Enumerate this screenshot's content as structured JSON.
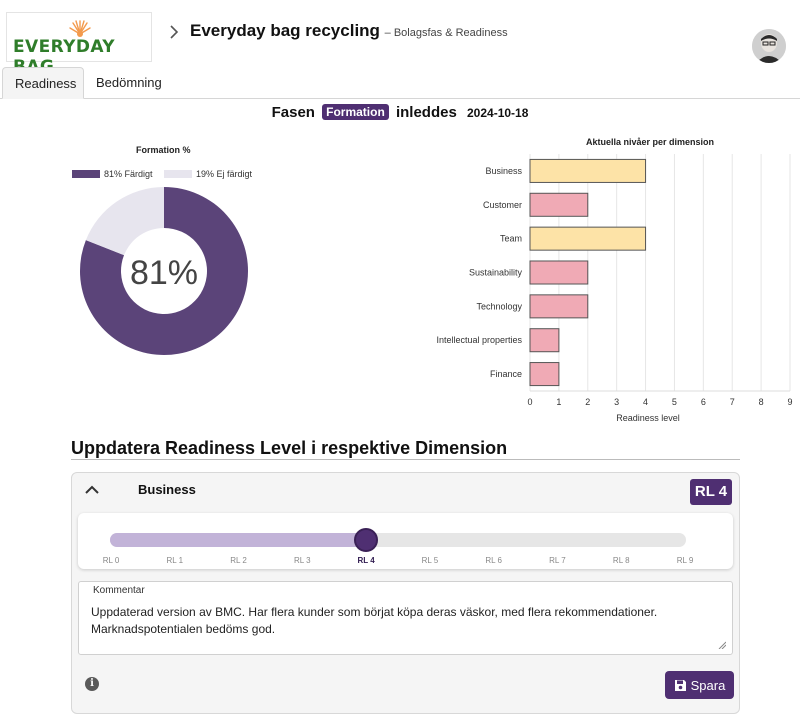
{
  "header": {
    "logo_text": "EVERYDAY BAG",
    "title": "Everyday bag recycling",
    "subtitle": "– Bolagsfas & Readiness"
  },
  "tabs": [
    {
      "label": "Readiness",
      "active": true
    },
    {
      "label": "Bedömning",
      "active": false
    }
  ],
  "phase": {
    "prefix": "Fasen",
    "badge": "Formation",
    "suffix": "inleddes",
    "date": "2024-10-18"
  },
  "colors": {
    "primary": "#4f2f72",
    "donut_done": "#5b4479",
    "donut_rest": "#e7e5ee",
    "bar_yellow": "#fde3a7",
    "bar_yellow_stroke": "#555555",
    "bar_red": "#f0aab5",
    "bar_red_stroke": "#555555",
    "slider_fill": "#c2b3d8"
  },
  "chart_data": [
    {
      "type": "pie",
      "title": "Formation %",
      "center_label": "81%",
      "labels": [
        "81% Färdigt",
        "19% Ej färdigt"
      ],
      "values": [
        81,
        19
      ],
      "legend": "top"
    },
    {
      "type": "bar",
      "orientation": "horizontal",
      "title": "Aktuella nivåer per dimension",
      "xlabel": "Readiness level",
      "ylabel": "",
      "categories": [
        "Business",
        "Customer",
        "Team",
        "Sustainability",
        "Technology",
        "Intellectual properties",
        "Finance"
      ],
      "values": [
        4,
        2,
        4,
        2,
        2,
        1,
        1
      ],
      "highlight": [
        true,
        false,
        true,
        false,
        false,
        false,
        false
      ],
      "xlim": [
        0,
        9
      ],
      "xticks": [
        "0",
        "1",
        "2",
        "3",
        "4",
        "5",
        "6",
        "7",
        "8",
        "9"
      ],
      "grid": true
    }
  ],
  "section": {
    "title": "Uppdatera Readiness Level i respektive Dimension"
  },
  "card": {
    "dimension": "Business",
    "badge": "RL 4",
    "slider": {
      "value": 4,
      "max": 9,
      "ticks": [
        "RL 0",
        "RL 1",
        "RL 2",
        "RL 3",
        "RL 4",
        "RL 5",
        "RL 6",
        "RL 7",
        "RL 8",
        "RL 9"
      ]
    },
    "comment_label": "Kommentar",
    "comment": "Uppdaterad version av BMC. Har flera kunder som börjat köpa deras väskor, med flera rekommendationer. Marknadspotentialen bedöms god.",
    "save_label": "Spara"
  }
}
